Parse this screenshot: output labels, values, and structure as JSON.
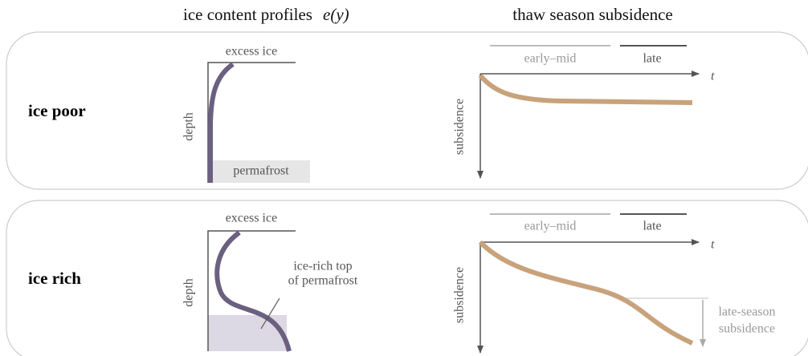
{
  "columns": {
    "profiles": "ice content profiles",
    "profiles_math": "e(y)",
    "subsidence": "thaw season subsidence"
  },
  "rows": [
    {
      "label": "ice poor",
      "profile": {
        "top_label": "excess ice",
        "axis_label": "depth",
        "bottom_label": "permafrost"
      },
      "subsidence": {
        "phases": [
          "early–mid",
          "late"
        ],
        "time_label": "t",
        "axis_label": "subsidence"
      }
    },
    {
      "label": "ice rich",
      "profile": {
        "top_label": "excess ice",
        "axis_label": "depth",
        "annotation": [
          "ice-rich top",
          "of permafrost"
        ]
      },
      "subsidence": {
        "phases": [
          "early–mid",
          "late"
        ],
        "time_label": "t",
        "axis_label": "subsidence",
        "annotation": [
          "late-season",
          "subsidence"
        ]
      }
    }
  ]
}
